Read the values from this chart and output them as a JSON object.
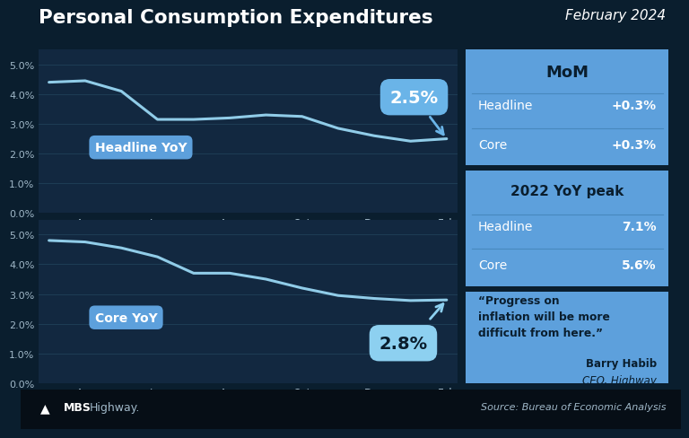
{
  "title": "Personal Consumption Expenditures",
  "subtitle": "February 2024",
  "bg_color": "#0a1e2e",
  "chart_bg": "#0f2336",
  "panel_bg": "#122840",
  "blue_panel": "#5da0dc",
  "line_color": "#90cce8",
  "headline_x": [
    0,
    1,
    2,
    3,
    4,
    5,
    6,
    7,
    8,
    9,
    10,
    11
  ],
  "headline_y": [
    4.4,
    4.45,
    4.1,
    3.15,
    3.15,
    3.2,
    3.3,
    3.25,
    2.85,
    2.6,
    2.42,
    2.5
  ],
  "core_x": [
    0,
    1,
    2,
    3,
    4,
    5,
    6,
    7,
    8,
    9,
    10,
    11
  ],
  "core_y": [
    4.8,
    4.75,
    4.55,
    4.25,
    3.7,
    3.7,
    3.5,
    3.2,
    2.95,
    2.85,
    2.78,
    2.8
  ],
  "x_labels": [
    "Apr",
    "Jun",
    "Aug",
    "Oct",
    "Dec",
    "Feb"
  ],
  "x_ticks": [
    1,
    3,
    5,
    7,
    9,
    11
  ],
  "y_ticks": [
    0.0,
    1.0,
    2.0,
    3.0,
    4.0,
    5.0
  ],
  "headline_label": "Headline YoY",
  "core_label": "Core YoY",
  "headline_value": "2.5%",
  "core_value": "2.8%",
  "mom_title": "MoM",
  "mom_headline_label": "Headline",
  "mom_headline_val": "+0.3%",
  "mom_core_label": "Core",
  "mom_core_val": "+0.3%",
  "peak_title": "2022 YoY peak",
  "peak_headline_label": "Headline",
  "peak_headline_val": "7.1%",
  "peak_core_label": "Core",
  "peak_core_val": "5.6%",
  "quote": "“Progress on\ninflation will be more\ndifficult from here.”",
  "quote_author": "Barry Habib",
  "quote_author2": "CEO, Highway",
  "source": "Source: Bureau of Economic Analysis",
  "grid_color": "#1e3d55",
  "separator_color": "#3a6080"
}
